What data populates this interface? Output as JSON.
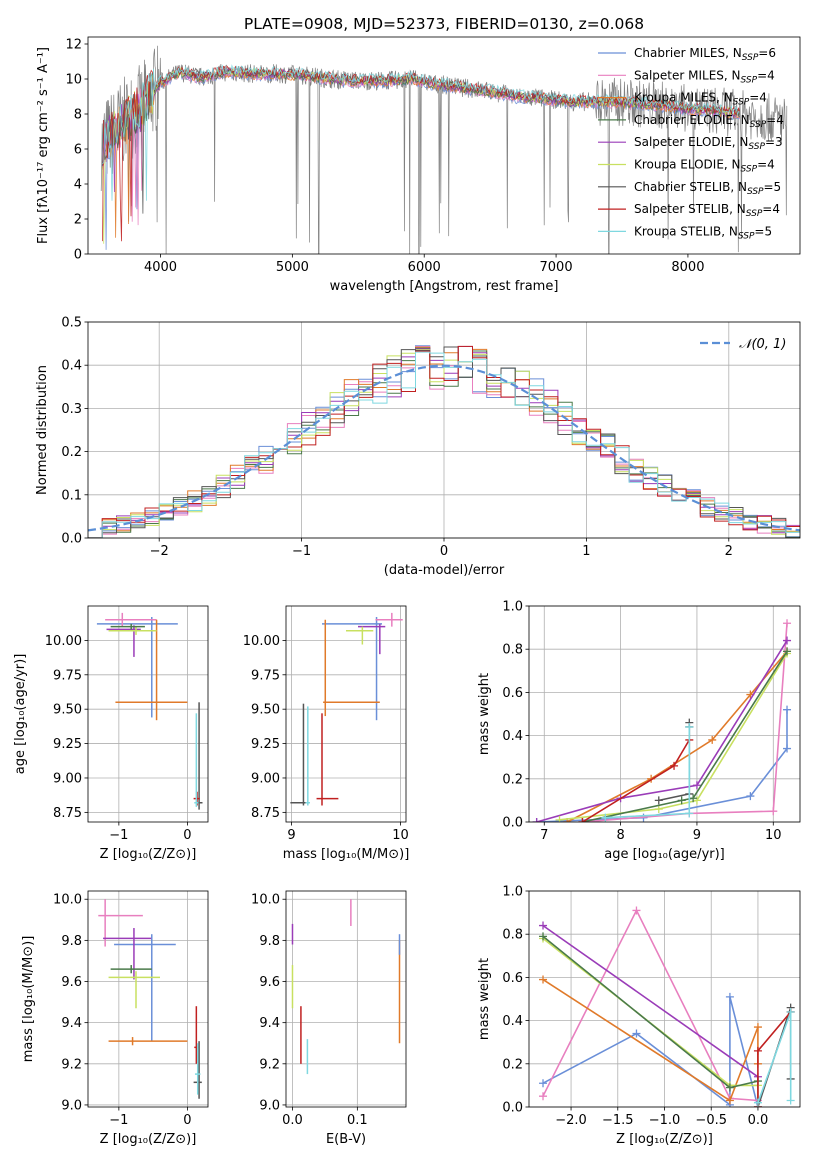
{
  "chart_data": [
    {
      "id": "spectrum",
      "type": "line",
      "title": "PLATE=0908, MJD=52373, FIBERID=0130, z=0.068",
      "xlabel": "wavelength [Angstrom, rest frame]",
      "ylabel": "Flux [fλ10⁻¹⁷ erg cm⁻² s⁻¹ A⁻¹]",
      "xlim": [
        3450,
        8850
      ],
      "ylim": [
        0,
        12.4
      ],
      "xticks": [
        4000,
        5000,
        6000,
        7000,
        8000
      ],
      "yticks": [
        0,
        2,
        4,
        6,
        8,
        10,
        12
      ],
      "grid": false,
      "legend_position": "top-right",
      "continuum": {
        "x": [
          3550,
          3700,
          3850,
          4000,
          4150,
          4300,
          4500,
          4700,
          4900,
          5100,
          5300,
          5500,
          5700,
          5900,
          6100,
          6300,
          6500,
          6700,
          6900,
          7100,
          7300,
          7450,
          7600,
          7800,
          8000,
          8200,
          8400,
          8600,
          8750
        ],
        "y": [
          6.2,
          7.4,
          8.3,
          9.8,
          10.4,
          10.1,
          10.4,
          10.3,
          10.3,
          10.2,
          10.0,
          9.9,
          9.9,
          10.0,
          9.7,
          9.5,
          9.3,
          9.0,
          8.9,
          8.7,
          8.7,
          8.7,
          8.6,
          8.5,
          8.3,
          8.2,
          8.0,
          7.8,
          7.6
        ]
      },
      "series": [
        {
          "name": "Chabrier MILES, N_SSP=6",
          "label_main": "Chabrier MILES, N",
          "label_tail": "=6",
          "color": "#6a8fd8"
        },
        {
          "name": "Salpeter MILES, N_SSP=4",
          "label_main": "Salpeter MILES, N",
          "label_tail": "=4",
          "color": "#e87fbf"
        },
        {
          "name": "Kroupa MILES, N_SSP=4",
          "label_main": "Kroupa MILES, N",
          "label_tail": "=4",
          "color": "#e07a2a"
        },
        {
          "name": "Chabrier ELODIE, N_SSP=4",
          "label_main": "Chabrier ELODIE, N",
          "label_tail": "=4",
          "color": "#4a7a4a"
        },
        {
          "name": "Salpeter ELODIE, N_SSP=3",
          "label_main": "Salpeter ELODIE, N",
          "label_tail": "=3",
          "color": "#9a3cb8"
        },
        {
          "name": "Kroupa ELODIE, N_SSP=4",
          "label_main": "Kroupa ELODIE, N",
          "label_tail": "=4",
          "color": "#c8e060"
        },
        {
          "name": "Chabrier STELIB, N_SSP=5",
          "label_main": "Chabrier STELIB, N",
          "label_tail": "=5",
          "color": "#555555"
        },
        {
          "name": "Salpeter STELIB, N_SSP=4",
          "label_main": "Salpeter STELIB, N",
          "label_tail": "=4",
          "color": "#c02020"
        },
        {
          "name": "Kroupa STELIB, N_SSP=5",
          "label_main": "Kroupa STELIB, N",
          "label_tail": "=5",
          "color": "#7fd8e0"
        }
      ],
      "observed_color": "#808080"
    },
    {
      "id": "residuals",
      "type": "line",
      "xlabel": "(data-model)/error",
      "ylabel": "Normed distribution",
      "xlim": [
        -2.5,
        2.5
      ],
      "ylim": [
        0,
        0.5
      ],
      "xticks": [
        -2,
        -1,
        0,
        1,
        2
      ],
      "yticks": [
        0.0,
        0.1,
        0.2,
        0.3,
        0.4,
        0.5
      ],
      "grid": true,
      "legend_position": "top-right",
      "legend_label": "𝒩(0, 1)",
      "gaussian": {
        "mean": 0,
        "sigma": 1,
        "color": "#5b8fd6"
      },
      "bin_width": 0.1,
      "colors": [
        "#6a8fd8",
        "#e87fbf",
        "#e07a2a",
        "#4a7a4a",
        "#9a3cb8",
        "#c8e060",
        "#555555",
        "#c02020",
        "#7fd8e0"
      ]
    },
    {
      "id": "age-vs-Z",
      "type": "scatter",
      "xlabel": "Z [log₁₀(Z/Z⊙)]",
      "ylabel": "age  [log₁₀(age/yr)]",
      "xlim": [
        -1.45,
        0.3
      ],
      "ylim": [
        8.68,
        10.25
      ],
      "xticks": [
        -1,
        0
      ],
      "yticks": [
        8.75,
        9.0,
        9.25,
        9.5,
        9.75,
        10.0
      ],
      "grid": true,
      "points": [
        {
          "x": -0.52,
          "xerr": [
            0.8,
            0.38
          ],
          "y": 10.12,
          "yerr": [
            0.68,
            0.05
          ],
          "color": "#6a8fd8"
        },
        {
          "x": -0.95,
          "xerr": [
            0.25,
            0.5
          ],
          "y": 10.15,
          "yerr": [
            0.05,
            0.05
          ],
          "color": "#e87fbf"
        },
        {
          "x": -0.45,
          "xerr": [
            0.6,
            0.45
          ],
          "y": 9.55,
          "yerr": [
            0.13,
            0.6
          ],
          "color": "#e07a2a"
        },
        {
          "x": -0.78,
          "xerr": [
            0.4,
            0.1
          ],
          "y": 10.08,
          "yerr": [
            0.2,
            0.03
          ],
          "color": "#9a3cb8"
        },
        {
          "x": -0.75,
          "xerr": [
            0.4,
            0.3
          ],
          "y": 10.07,
          "yerr": [
            0.03,
            0.03
          ],
          "color": "#c8e060"
        },
        {
          "x": -0.82,
          "xerr": [
            0.3,
            0.2
          ],
          "y": 10.1,
          "yerr": [
            0.02,
            0.02
          ],
          "color": "#4a7a4a"
        },
        {
          "x": 0.17,
          "xerr": [
            0.05,
            0.05
          ],
          "y": 8.82,
          "yerr": [
            0.05,
            0.73
          ],
          "color": "#555555"
        },
        {
          "x": 0.14,
          "xerr": [
            0.05,
            0.04
          ],
          "y": 8.85,
          "yerr": [
            0.05,
            0.05
          ],
          "color": "#c02020"
        },
        {
          "x": 0.13,
          "xerr": [
            0.03,
            0.03
          ],
          "y": 8.82,
          "yerr": [
            0.03,
            0.65
          ],
          "color": "#7fd8e0"
        }
      ]
    },
    {
      "id": "age-vs-mass",
      "type": "scatter",
      "xlabel": "mass [log₁₀(M/M⊙)]",
      "xlim": [
        8.95,
        10.05
      ],
      "ylim": [
        8.68,
        10.25
      ],
      "xticks": [
        9,
        10
      ],
      "yticks": [
        8.75,
        9.0,
        9.25,
        9.5,
        9.75,
        10.0
      ],
      "grid": true,
      "points": [
        {
          "x": 9.78,
          "xerr": [
            0.5,
            0.05
          ],
          "y": 10.12,
          "yerr": [
            0.7,
            0.05
          ],
          "color": "#6a8fd8"
        },
        {
          "x": 9.92,
          "xerr": [
            0.15,
            0.1
          ],
          "y": 10.15,
          "yerr": [
            0.05,
            0.05
          ],
          "color": "#e87fbf"
        },
        {
          "x": 9.31,
          "xerr": [
            0.02,
            0.5
          ],
          "y": 9.55,
          "yerr": [
            0.1,
            0.6
          ],
          "color": "#e07a2a"
        },
        {
          "x": 9.81,
          "xerr": [
            0.2,
            0.05
          ],
          "y": 10.1,
          "yerr": [
            0.2,
            0.02
          ],
          "color": "#9a3cb8"
        },
        {
          "x": 9.65,
          "xerr": [
            0.15,
            0.1
          ],
          "y": 10.07,
          "yerr": [
            0.1,
            0.03
          ],
          "color": "#c8e060"
        },
        {
          "x": 9.11,
          "xerr": [
            0.12,
            0.02
          ],
          "y": 8.82,
          "yerr": [
            0.02,
            0.72
          ],
          "color": "#555555"
        },
        {
          "x": 9.28,
          "xerr": [
            0.05,
            0.15
          ],
          "y": 8.85,
          "yerr": [
            0.05,
            0.62
          ],
          "color": "#c02020"
        },
        {
          "x": 9.15,
          "xerr": [
            0.02,
            0.02
          ],
          "y": 8.82,
          "yerr": [
            0.02,
            0.7
          ],
          "color": "#7fd8e0"
        }
      ]
    },
    {
      "id": "weight-vs-age",
      "type": "line",
      "xlabel": "age  [log₁₀(age/yr)]",
      "ylabel": "mass weight",
      "xlim": [
        6.8,
        10.35
      ],
      "ylim": [
        0,
        1.0
      ],
      "xticks": [
        7,
        8,
        9,
        10
      ],
      "yticks": [
        0.0,
        0.2,
        0.4,
        0.6,
        0.8,
        1.0
      ],
      "grid": true,
      "series": [
        {
          "color": "#6a8fd8",
          "x": [
            6.9,
            8.3,
            9.7,
            10.18,
            10.18
          ],
          "y": [
            0.0,
            0.02,
            0.12,
            0.34,
            0.52
          ]
        },
        {
          "color": "#e87fbf",
          "x": [
            7.5,
            8.9,
            10.0,
            10.18
          ],
          "y": [
            0.0,
            0.04,
            0.05,
            0.92
          ]
        },
        {
          "color": "#e07a2a",
          "x": [
            7.3,
            8.4,
            9.2,
            9.7,
            10.18
          ],
          "y": [
            0.0,
            0.2,
            0.38,
            0.59,
            0.79
          ]
        },
        {
          "color": "#9a3cb8",
          "x": [
            6.9,
            8.0,
            9.0,
            10.18
          ],
          "y": [
            0.0,
            0.11,
            0.17,
            0.84
          ]
        },
        {
          "color": "#c8e060",
          "x": [
            7.2,
            8.5,
            9.0,
            10.18
          ],
          "y": [
            0.01,
            0.06,
            0.1,
            0.78
          ]
        },
        {
          "color": "#4a7a4a",
          "x": [
            7.5,
            8.8,
            8.95,
            10.18
          ],
          "y": [
            0.0,
            0.1,
            0.11,
            0.79
          ]
        },
        {
          "color": "#555555",
          "x": [
            8.5,
            8.9,
            8.9,
            8.9
          ],
          "y": [
            0.1,
            0.13,
            0.44,
            0.46
          ]
        },
        {
          "color": "#c02020",
          "x": [
            7.5,
            8.7,
            8.9
          ],
          "y": [
            0.0,
            0.26,
            0.38
          ]
        },
        {
          "color": "#7fd8e0",
          "x": [
            7.8,
            8.9,
            8.9
          ],
          "y": [
            0.02,
            0.04,
            0.44
          ]
        }
      ]
    },
    {
      "id": "mass-vs-Z",
      "type": "scatter",
      "xlabel": "Z [log₁₀(Z/Z⊙)]",
      "ylabel": "mass [log₁₀(M/M⊙)]",
      "xlim": [
        -1.45,
        0.3
      ],
      "ylim": [
        8.99,
        10.04
      ],
      "xticks": [
        -1,
        0
      ],
      "yticks": [
        9.0,
        9.2,
        9.4,
        9.6,
        9.8,
        10.0
      ],
      "grid": true,
      "points": [
        {
          "x": -0.52,
          "xerr": [
            0.55,
            0.35
          ],
          "y": 9.78,
          "yerr": [
            0.47,
            0.05
          ],
          "color": "#6a8fd8"
        },
        {
          "x": -1.2,
          "xerr": [
            0.1,
            0.55
          ],
          "y": 9.92,
          "yerr": [
            0.15,
            0.08
          ],
          "color": "#e87fbf"
        },
        {
          "x": -0.8,
          "xerr": [
            0.35,
            0.8
          ],
          "y": 9.31,
          "yerr": [
            0.02,
            0.02
          ],
          "color": "#e07a2a"
        },
        {
          "x": -0.78,
          "xerr": [
            0.45,
            0.25
          ],
          "y": 9.81,
          "yerr": [
            0.2,
            0.05
          ],
          "color": "#9a3cb8"
        },
        {
          "x": -0.75,
          "xerr": [
            0.4,
            0.35
          ],
          "y": 9.62,
          "yerr": [
            0.15,
            0.03
          ],
          "color": "#c8e060"
        },
        {
          "x": -0.82,
          "xerr": [
            0.3,
            0.3
          ],
          "y": 9.66,
          "yerr": [
            0.02,
            0.02
          ],
          "color": "#4a7a4a"
        },
        {
          "x": 0.17,
          "xerr": [
            0.08,
            0.04
          ],
          "y": 9.11,
          "yerr": [
            0.08,
            0.2
          ],
          "color": "#555555"
        },
        {
          "x": 0.13,
          "xerr": [
            0.03,
            0.03
          ],
          "y": 9.28,
          "yerr": [
            0.08,
            0.2
          ],
          "color": "#c02020"
        },
        {
          "x": 0.15,
          "xerr": [
            0.04,
            0.04
          ],
          "y": 9.15,
          "yerr": [
            0.1,
            0.15
          ],
          "color": "#7fd8e0"
        }
      ]
    },
    {
      "id": "mass-vs-EBV",
      "type": "scatter",
      "xlabel": "E(B-V)",
      "xlim": [
        -0.01,
        0.175
      ],
      "ylim": [
        8.99,
        10.04
      ],
      "xticks": [
        0.0,
        0.1
      ],
      "yticks": [
        9.0,
        9.2,
        9.4,
        9.6,
        9.8,
        10.0
      ],
      "grid": true,
      "points": [
        {
          "x": 0.0,
          "y": 9.78,
          "yerr": [
            0.0,
            0.1
          ],
          "color": "#9a3cb8"
        },
        {
          "x": 0.0,
          "y": 9.62,
          "yerr": [
            0.15,
            0.06
          ],
          "color": "#c8e060"
        },
        {
          "x": 0.013,
          "y": 9.28,
          "yerr": [
            0.08,
            0.2
          ],
          "color": "#c02020"
        },
        {
          "x": 0.023,
          "y": 9.15,
          "yerr": [
            0.0,
            0.17
          ],
          "color": "#7fd8e0"
        },
        {
          "x": 0.09,
          "y": 9.92,
          "yerr": [
            0.05,
            0.08
          ],
          "color": "#e87fbf"
        },
        {
          "x": 0.165,
          "y": 9.6,
          "yerr": [
            0.3,
            0.2
          ],
          "color": "#e07a2a"
        },
        {
          "x": 0.165,
          "y": 9.78,
          "yerr": [
            0.05,
            0.05
          ],
          "color": "#6a8fd8"
        }
      ]
    },
    {
      "id": "weight-vs-Z",
      "type": "line",
      "xlabel": "Z [log₁₀(Z/Z⊙)]",
      "ylabel": "mass weight",
      "xlim": [
        -2.45,
        0.45
      ],
      "ylim": [
        0,
        1.0
      ],
      "xticks": [
        -2.0,
        -1.5,
        -1.0,
        -0.5,
        0.0
      ],
      "yticks": [
        0.0,
        0.2,
        0.4,
        0.6,
        0.8,
        1.0
      ],
      "grid": true,
      "series": [
        {
          "color": "#6a8fd8",
          "x": [
            -2.3,
            -1.3,
            -0.3,
            -0.3,
            0.0
          ],
          "y": [
            0.11,
            0.34,
            0.01,
            0.51,
            0.0
          ]
        },
        {
          "color": "#e87fbf",
          "x": [
            -2.3,
            -1.3,
            -0.3,
            0.0,
            0.0
          ],
          "y": [
            0.05,
            0.91,
            0.04,
            0.03,
            0.0
          ]
        },
        {
          "color": "#e07a2a",
          "x": [
            -2.3,
            -0.3,
            0.0,
            0.0
          ],
          "y": [
            0.59,
            0.03,
            0.37,
            0.2
          ]
        },
        {
          "color": "#9a3cb8",
          "x": [
            -2.3,
            0.0,
            0.0
          ],
          "y": [
            0.84,
            0.14,
            0.0
          ]
        },
        {
          "color": "#c8e060",
          "x": [
            -2.3,
            -0.3,
            0.0,
            0.0
          ],
          "y": [
            0.78,
            0.1,
            0.1,
            0.0
          ]
        },
        {
          "color": "#4a7a4a",
          "x": [
            -2.3,
            -0.3,
            0.0
          ],
          "y": [
            0.79,
            0.09,
            0.12
          ]
        },
        {
          "color": "#555555",
          "x": [
            0.0,
            0.35,
            0.35
          ],
          "y": [
            0.0,
            0.46,
            0.13
          ]
        },
        {
          "color": "#c02020",
          "x": [
            0.0,
            0.0,
            0.35
          ],
          "y": [
            0.0,
            0.26,
            0.44
          ]
        },
        {
          "color": "#7fd8e0",
          "x": [
            0.35,
            0.35,
            0.0
          ],
          "y": [
            0.03,
            0.44,
            0.02
          ]
        }
      ]
    }
  ]
}
